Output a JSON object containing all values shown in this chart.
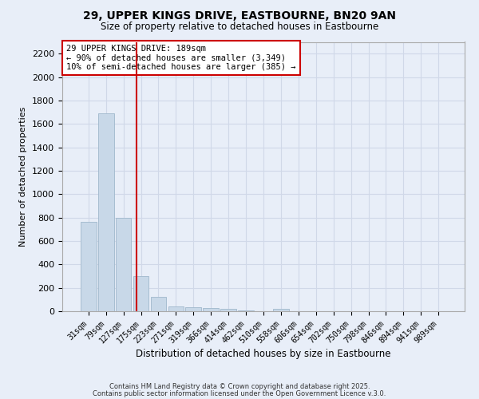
{
  "title1": "29, UPPER KINGS DRIVE, EASTBOURNE, BN20 9AN",
  "title2": "Size of property relative to detached houses in Eastbourne",
  "xlabel": "Distribution of detached houses by size in Eastbourne",
  "ylabel": "Number of detached properties",
  "categories": [
    "31sqm",
    "79sqm",
    "127sqm",
    "175sqm",
    "223sqm",
    "271sqm",
    "319sqm",
    "366sqm",
    "414sqm",
    "462sqm",
    "510sqm",
    "558sqm",
    "606sqm",
    "654sqm",
    "702sqm",
    "750sqm",
    "798sqm",
    "846sqm",
    "894sqm",
    "941sqm",
    "989sqm"
  ],
  "values": [
    760,
    1690,
    800,
    300,
    120,
    40,
    35,
    25,
    20,
    5,
    0,
    20,
    0,
    0,
    0,
    0,
    0,
    0,
    0,
    0,
    0
  ],
  "bar_color": "#c8d8e8",
  "bar_edgecolor": "#a0b8cc",
  "grid_color": "#d0d8e8",
  "background_color": "#e8eef8",
  "vline_x": 2.75,
  "vline_color": "#cc0000",
  "annotation_text": "29 UPPER KINGS DRIVE: 189sqm\n← 90% of detached houses are smaller (3,349)\n10% of semi-detached houses are larger (385) →",
  "annotation_box_color": "#ffffff",
  "annotation_box_edgecolor": "#cc0000",
  "footnote1": "Contains HM Land Registry data © Crown copyright and database right 2025.",
  "footnote2": "Contains public sector information licensed under the Open Government Licence v.3.0.",
  "ylim": [
    0,
    2300
  ],
  "yticks": [
    0,
    200,
    400,
    600,
    800,
    1000,
    1200,
    1400,
    1600,
    1800,
    2000,
    2200
  ]
}
